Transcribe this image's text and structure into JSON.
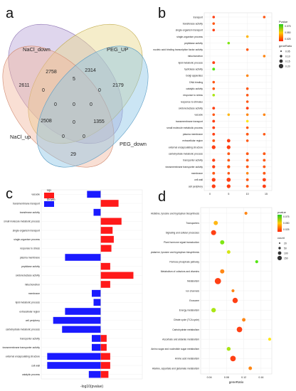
{
  "panels": {
    "a": "a",
    "b": "b",
    "c": "c",
    "d": "d"
  },
  "chart_data": [
    {
      "panel": "a",
      "type": "venn",
      "sets": [
        "NaCl_down",
        "PEG_UP",
        "PEG_down",
        "NaCl_up"
      ],
      "colors": {
        "NaCl_down": "#b9a3d6",
        "PEG_UP": "#e8d88a",
        "PEG_down": "#8cc6e6",
        "NaCl_up": "#f2b7a0"
      },
      "region_values": [
        "2758",
        "2314",
        "2611",
        "2179",
        "0",
        "5",
        "0",
        "0",
        "0",
        "0",
        "0",
        "2508",
        "1355",
        "0",
        "0",
        "29"
      ]
    },
    {
      "panel": "b",
      "type": "scatter",
      "y_categories": [
        "transport",
        "transferase activity",
        "single-organism transport",
        "single-organism process",
        "peptidase activity",
        "nucleic acid binding transcription factor activity",
        "mitochondrion",
        "lipid metabolic process",
        "hydrolase activity",
        "Golgi apparatus",
        "DNA binding",
        "catalytic activity",
        "response to stress",
        "response to stimulus",
        "oxidoreductase activity",
        "vacuole",
        "transmembrane transport",
        "small molecule metabolic process",
        "plasma membrane",
        "extracellular region",
        "external encapsulating structure",
        "carbohydrate metabolic process",
        "transporter activity",
        "transmembrane transporter activity",
        "membrane",
        "cell wall",
        "cell periphery"
      ],
      "x_ticks": [
        "0",
        "5",
        "10",
        "15"
      ],
      "legend_titles": [
        "Pvalue",
        "geneRatio"
      ],
      "legend_color_ticks": [
        "0.075",
        "0.050",
        "0.025"
      ],
      "legend_size_ticks": [
        "0.05",
        "0.10",
        "0.15",
        "0.20"
      ],
      "points": [
        {
          "cat": "transport",
          "x": 1,
          "size": 0.05,
          "p": 0.005
        },
        {
          "cat": "transport",
          "x": 14.5,
          "size": 0.05,
          "p": 0.01
        },
        {
          "cat": "transferase activity",
          "x": 1,
          "size": 0.05,
          "p": 0.01
        },
        {
          "cat": "single-organism transport",
          "x": 1,
          "size": 0.05,
          "p": 0.005
        },
        {
          "cat": "single-organism process",
          "x": 10,
          "size": 0.05,
          "p": 0.03
        },
        {
          "cat": "peptidase activity",
          "x": 5,
          "size": 0.05,
          "p": 0.07
        },
        {
          "cat": "nucleic acid binding transcription factor activity",
          "x": 10,
          "size": 0.05,
          "p": 0.01
        },
        {
          "cat": "mitochondrion",
          "x": 14.5,
          "size": 0.05,
          "p": 0.02
        },
        {
          "cat": "lipid metabolic process",
          "x": 1,
          "size": 0.06,
          "p": 0.005
        },
        {
          "cat": "hydrolase activity",
          "x": 1,
          "size": 0.06,
          "p": 0.08
        },
        {
          "cat": "Golgi apparatus",
          "x": 10,
          "size": 0.05,
          "p": 0.02
        },
        {
          "cat": "DNA binding",
          "x": 1,
          "size": 0.05,
          "p": 0.01
        },
        {
          "cat": "catalytic activity",
          "x": 1,
          "size": 0.05,
          "p": 0.01
        },
        {
          "cat": "catalytic activity",
          "x": 10,
          "size": 0.05,
          "p": 0.01
        },
        {
          "cat": "response to stress",
          "x": 1,
          "size": 0.05,
          "p": 0.06
        },
        {
          "cat": "response to stress",
          "x": 10,
          "size": 0.05,
          "p": 0.01
        },
        {
          "cat": "response to stimulus",
          "x": 10,
          "size": 0.05,
          "p": 0.01
        },
        {
          "cat": "oxidoreductase activity",
          "x": 1,
          "size": 0.06,
          "p": 0.005
        },
        {
          "cat": "oxidoreductase activity",
          "x": 10,
          "size": 0.06,
          "p": 0.005
        },
        {
          "cat": "vacuole",
          "x": 1,
          "size": 0.05,
          "p": 0.01
        },
        {
          "cat": "vacuole",
          "x": 5,
          "size": 0.05,
          "p": 0.03
        },
        {
          "cat": "vacuole",
          "x": 10,
          "size": 0.05,
          "p": 0.02
        },
        {
          "cat": "vacuole",
          "x": 14.5,
          "size": 0.05,
          "p": 0.02
        },
        {
          "cat": "transmembrane transport",
          "x": 1,
          "size": 0.06,
          "p": 0.005
        },
        {
          "cat": "transmembrane transport",
          "x": 10,
          "size": 0.05,
          "p": 0.04
        },
        {
          "cat": "small molecule metabolic process",
          "x": 1,
          "size": 0.06,
          "p": 0.005
        },
        {
          "cat": "small molecule metabolic process",
          "x": 10,
          "size": 0.05,
          "p": 0.01
        },
        {
          "cat": "plasma membrane",
          "x": 1,
          "size": 0.06,
          "p": 0.005
        },
        {
          "cat": "plasma membrane",
          "x": 10,
          "size": 0.06,
          "p": 0.01
        },
        {
          "cat": "plasma membrane",
          "x": 14.5,
          "size": 0.05,
          "p": 0.01
        },
        {
          "cat": "extracellular region",
          "x": 1,
          "size": 0.06,
          "p": 0.01
        },
        {
          "cat": "extracellular region",
          "x": 5,
          "size": 0.1,
          "p": 0.005
        },
        {
          "cat": "extracellular region",
          "x": 10,
          "size": 0.05,
          "p": 0.01
        },
        {
          "cat": "external encapsulating structure",
          "x": 1,
          "size": 0.12,
          "p": 0.005
        },
        {
          "cat": "external encapsulating structure",
          "x": 5,
          "size": 0.12,
          "p": 0.005
        },
        {
          "cat": "carbohydrate metabolic process",
          "x": 5,
          "size": 0.06,
          "p": 0.01
        },
        {
          "cat": "carbohydrate metabolic process",
          "x": 10,
          "size": 0.06,
          "p": 0.01
        },
        {
          "cat": "carbohydrate metabolic process",
          "x": 14.5,
          "size": 0.06,
          "p": 0.01
        },
        {
          "cat": "transporter activity",
          "x": 1,
          "size": 0.08,
          "p": 0.005
        },
        {
          "cat": "transporter activity",
          "x": 5,
          "size": 0.06,
          "p": 0.01
        },
        {
          "cat": "transporter activity",
          "x": 10,
          "size": 0.06,
          "p": 0.01
        },
        {
          "cat": "transporter activity",
          "x": 14.5,
          "size": 0.06,
          "p": 0.01
        },
        {
          "cat": "transmembrane transporter activity",
          "x": 1,
          "size": 0.08,
          "p": 0.005
        },
        {
          "cat": "transmembrane transporter activity",
          "x": 5,
          "size": 0.08,
          "p": 0.01
        },
        {
          "cat": "transmembrane transporter activity",
          "x": 10,
          "size": 0.06,
          "p": 0.01
        },
        {
          "cat": "transmembrane transporter activity",
          "x": 14.5,
          "size": 0.06,
          "p": 0.01
        },
        {
          "cat": "membrane",
          "x": 1,
          "size": 0.06,
          "p": 0.01
        },
        {
          "cat": "membrane",
          "x": 5,
          "size": 0.05,
          "p": 0.01
        },
        {
          "cat": "membrane",
          "x": 10,
          "size": 0.05,
          "p": 0.02
        },
        {
          "cat": "membrane",
          "x": 14.5,
          "size": 0.06,
          "p": 0.01
        },
        {
          "cat": "cell wall",
          "x": 1,
          "size": 0.12,
          "p": 0.005
        },
        {
          "cat": "cell wall",
          "x": 5,
          "size": 0.14,
          "p": 0.005
        },
        {
          "cat": "cell wall",
          "x": 10,
          "size": 0.06,
          "p": 0.01
        },
        {
          "cat": "cell wall",
          "x": 14.5,
          "size": 0.1,
          "p": 0.005
        },
        {
          "cat": "cell periphery",
          "x": 1,
          "size": 0.12,
          "p": 0.005
        },
        {
          "cat": "cell periphery",
          "x": 5,
          "size": 0.12,
          "p": 0.005
        },
        {
          "cat": "cell periphery",
          "x": 10,
          "size": 0.06,
          "p": 0.01
        },
        {
          "cat": "cell periphery",
          "x": 14.5,
          "size": 0.1,
          "p": 0.005
        }
      ]
    },
    {
      "panel": "c",
      "type": "bar",
      "orientation": "horizontal",
      "xlabel": "-log10(pvalue)",
      "legend": [
        "Up",
        "Down"
      ],
      "colors": {
        "Up": "#ff1a1a",
        "Down": "#1a1aff"
      },
      "categories": [
        "vacuole",
        "transmembrane transport",
        "transferase activity",
        "small molecule metabolic process",
        "single-organism transport",
        "single-organism process",
        "response to stress",
        "plasma membrane",
        "peptidase activity",
        "oxidoreductase activity",
        "mitochondrion",
        "membrane",
        "lipid metabolic process",
        "extracellular region",
        "cell periphery",
        "carbohydrate metabolic process",
        "transporter activity",
        "transmembrane transporter activity",
        "external encapsulating structure",
        "cell wall",
        "catalytic process"
      ],
      "series": [
        {
          "name": "Up",
          "values": [
            0,
            3,
            0,
            3.5,
            2,
            2.2,
            1.8,
            0,
            1.6,
            5.5,
            1.6,
            0,
            0,
            0,
            0,
            0,
            1,
            1,
            1.6,
            1.6,
            1.3
          ]
        },
        {
          "name": "Down",
          "values": [
            -2.3,
            0,
            -1.2,
            0,
            0,
            0,
            0,
            -6,
            0,
            0,
            0,
            -1.5,
            -1.2,
            -6,
            -8,
            -6.5,
            -1.5,
            -1.5,
            -9,
            -9,
            -2
          ]
        }
      ],
      "xlim": [
        -10,
        7
      ]
    },
    {
      "panel": "d",
      "type": "scatter",
      "xlabel": "geneRatio",
      "x_ticks": [
        "0.04",
        "0.08",
        "0.12",
        "0.16"
      ],
      "legend_titles": [
        "pvalue",
        "count"
      ],
      "legend_color_ticks": [
        "0.075",
        "0.050",
        "0.025"
      ],
      "legend_size_ticks": [
        "20",
        "50",
        "100",
        "150"
      ],
      "xlim": [
        0.02,
        0.185
      ],
      "points": [
        {
          "cat": "Histidine, tyrosine and tryptophan biosynthesis",
          "x": 0.125,
          "count": 10,
          "p": 0.02
        },
        {
          "cat": "Transporters",
          "x": 0.055,
          "count": 40,
          "p": 0.03
        },
        {
          "cat": "Signaling and cellular processes",
          "x": 0.05,
          "count": 70,
          "p": 0.005
        },
        {
          "cat": "Plant hormone signal transduction",
          "x": 0.07,
          "count": 40,
          "p": 0.07
        },
        {
          "cat": "Phenylalanine, tyrosine and tryptophan biosynthesis",
          "x": 0.085,
          "count": 20,
          "p": 0.05
        },
        {
          "cat": "Pentose phosphate pathway",
          "x": 0.15,
          "count": 10,
          "p": 0.08
        },
        {
          "cat": "Metabolism of cofactors and vitamins",
          "x": 0.07,
          "count": 40,
          "p": 0.02
        },
        {
          "cat": "Metabolism",
          "x": 0.06,
          "count": 130,
          "p": 0.005
        },
        {
          "cat": "Ion channels",
          "x": 0.095,
          "count": 10,
          "p": 0.02
        },
        {
          "cat": "Exosome",
          "x": 0.1,
          "count": 80,
          "p": 0.005
        },
        {
          "cat": "Energy metabolism",
          "x": 0.05,
          "count": 50,
          "p": 0.06
        },
        {
          "cat": "Citrate cycle (TCA cycle)",
          "x": 0.12,
          "count": 20,
          "p": 0.02
        },
        {
          "cat": "Carbohydrate metabolism",
          "x": 0.11,
          "count": 90,
          "p": 0.005
        },
        {
          "cat": "Ascorbate and aldarate metabolism",
          "x": 0.18,
          "count": 10,
          "p": 0.04
        },
        {
          "cat": "Amino sugar and nucleotide sugar metabolism",
          "x": 0.085,
          "count": 30,
          "p": 0.06
        },
        {
          "cat": "Amino acid metabolism",
          "x": 0.095,
          "count": 90,
          "p": 0.005
        },
        {
          "cat": "Alanine, aspartate and glutamate metabolism",
          "x": 0.135,
          "count": 20,
          "p": 0.02
        }
      ]
    }
  ]
}
